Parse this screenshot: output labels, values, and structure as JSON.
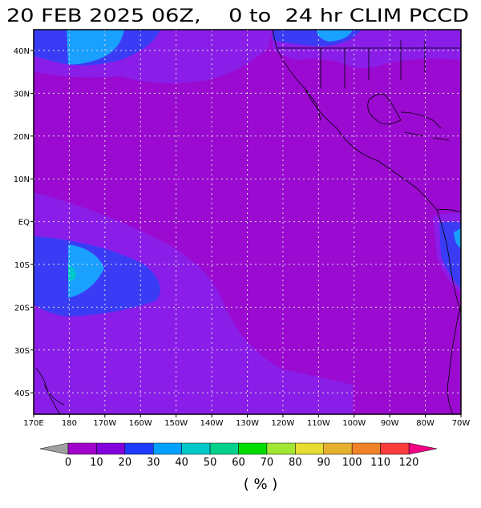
{
  "map": {
    "title": "20 FEB 2025 06Z,    0 to  24 hr CLIM PCCD",
    "lat_labels": [
      "40N",
      "30N",
      "20N",
      "10N",
      "EQ",
      "10S",
      "20S",
      "30S",
      "40S"
    ],
    "lon_labels": [
      "170E",
      "180",
      "170W",
      "160W",
      "150W",
      "140W",
      "130W",
      "120W",
      "110W",
      "100W",
      "90W",
      "80W",
      "70W"
    ],
    "colorbar": {
      "levels": [
        0,
        10,
        20,
        30,
        40,
        50,
        60,
        70,
        80,
        90,
        100,
        110,
        120
      ],
      "colors": [
        "#a000c8",
        "#8200dc",
        "#1e3cff",
        "#00a0ff",
        "#00c8c8",
        "#00d28c",
        "#00dc00",
        "#a0e632",
        "#e6dc32",
        "#e6af2d",
        "#f08228",
        "#fa3c3c"
      ],
      "under_color": "#a0a0a0",
      "over_color": "#f00082",
      "unit": "( % )"
    }
  }
}
